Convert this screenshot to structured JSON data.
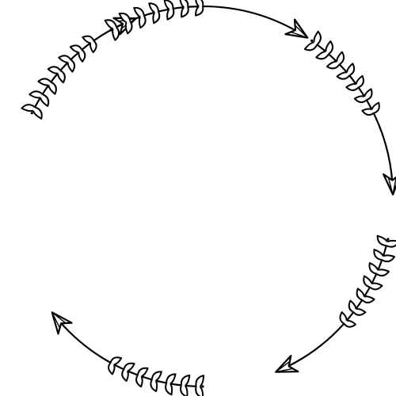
{
  "artwork": {
    "kind": "hand-drawn arrow circle frame",
    "stroke_color": "#000000",
    "fill_color": "#ffffff",
    "arrow_count": 4,
    "direction": "clockwise"
  }
}
